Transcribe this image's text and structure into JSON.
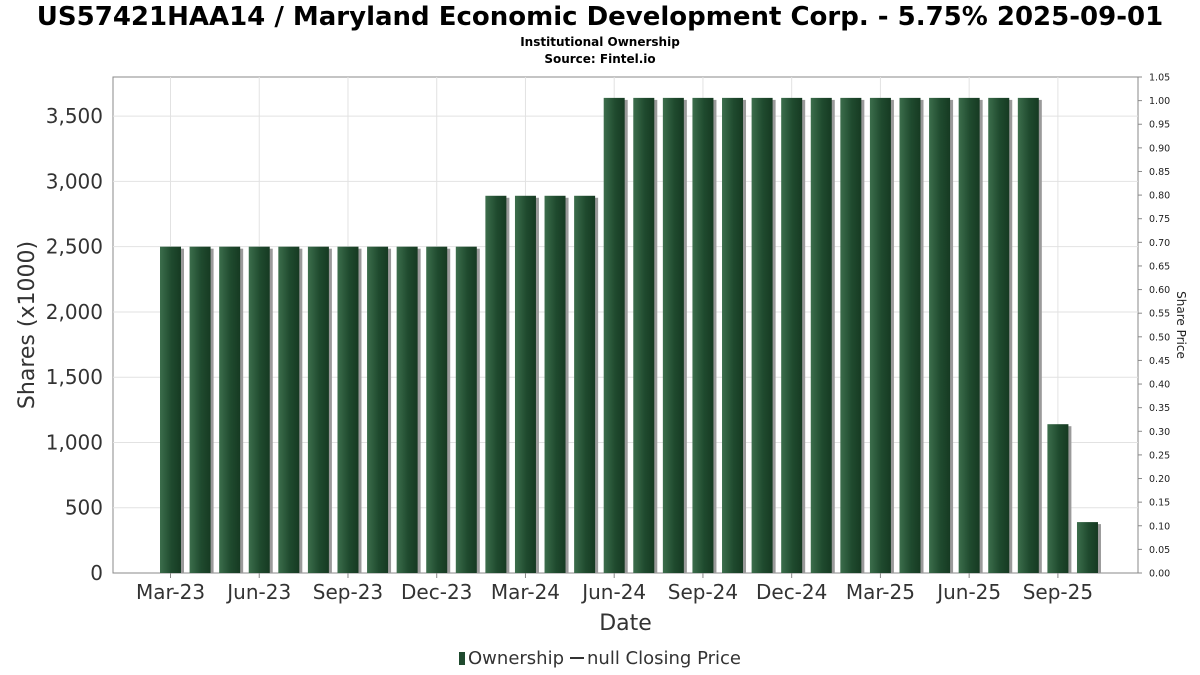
{
  "header": {
    "title": "US57421HAA14 / Maryland Economic Development Corp. - 5.75% 2025-09-01",
    "subtitle": "Institutional Ownership",
    "source": "Source: Fintel.io"
  },
  "legend": {
    "ownership": "Ownership",
    "price": "null Closing Price"
  },
  "colors": {
    "bar": "#1f4a2e",
    "bar_light": "#3c6e4c",
    "bar_shadow": "#9a9a9a",
    "grid": "#e2e2e2"
  },
  "chart_data": {
    "type": "bar",
    "xlabel": "Date",
    "ylabel": "Shares (x1000)",
    "y2label": "Share Price",
    "ylim": [
      0,
      3800
    ],
    "y2lim": [
      0,
      1.05
    ],
    "yticks": [
      "0",
      "500",
      "1,000",
      "1,500",
      "2,000",
      "2,500",
      "3,000",
      "3,500"
    ],
    "y2ticks": [
      "0.00",
      "0.05",
      "0.10",
      "0.15",
      "0.20",
      "0.25",
      "0.30",
      "0.35",
      "0.40",
      "0.45",
      "0.50",
      "0.55",
      "0.60",
      "0.65",
      "0.70",
      "0.75",
      "0.80",
      "0.85",
      "0.90",
      "0.95",
      "1.00",
      "1.05"
    ],
    "xticks": [
      "Mar-23",
      "Jun-23",
      "Sep-23",
      "Dec-23",
      "Mar-24",
      "Jun-24",
      "Sep-24",
      "Dec-24",
      "Mar-25",
      "Jun-25",
      "Sep-25"
    ],
    "grid": true,
    "legend_position": "bottom",
    "series": [
      {
        "name": "Ownership",
        "values": [
          2500,
          2500,
          2500,
          2500,
          2500,
          2500,
          2500,
          2500,
          2500,
          2500,
          2500,
          2890,
          2890,
          2890,
          2890,
          3640,
          3640,
          3640,
          3640,
          3640,
          3640,
          3640,
          3640,
          3640,
          3640,
          3640,
          3640,
          3640,
          3640,
          3640,
          1140,
          390
        ]
      }
    ]
  }
}
